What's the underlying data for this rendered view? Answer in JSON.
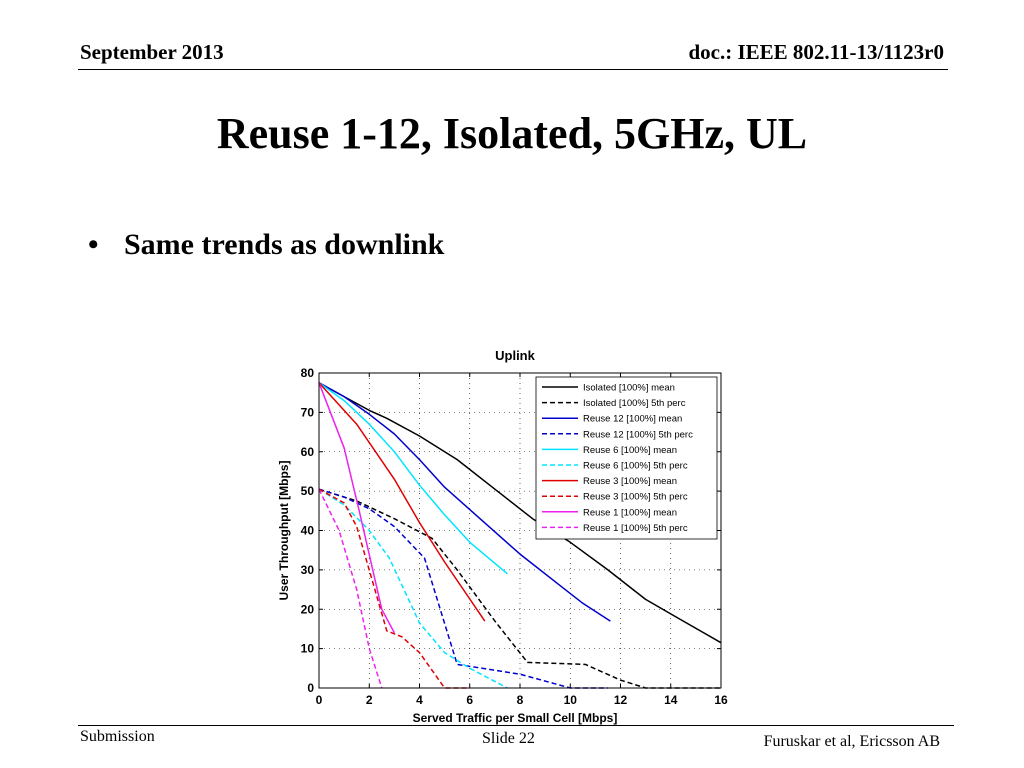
{
  "header": {
    "date": "September 2013",
    "doc_id": "doc.: IEEE 802.11-13/1123r0"
  },
  "slide": {
    "title": "Reuse 1-12, Isolated, 5GHz, UL",
    "bullets": [
      "Same trends as downlink"
    ]
  },
  "footer": {
    "left": "Submission",
    "center": "Slide 22",
    "right": "Furuskar et al, Ericsson AB"
  },
  "chart_data": {
    "type": "line",
    "title": "Uplink",
    "xlabel": "Served Traffic per Small Cell [Mbps]",
    "ylabel": "User Throughput [Mbps]",
    "xlim": [
      0,
      16
    ],
    "ylim": [
      0,
      80
    ],
    "xticks": [
      0,
      2,
      4,
      6,
      8,
      10,
      12,
      14,
      16
    ],
    "yticks": [
      0,
      10,
      20,
      30,
      40,
      50,
      60,
      70,
      80
    ],
    "grid": true,
    "legend_position": "top-right",
    "series": [
      {
        "name": "Isolated [100%] mean",
        "color": "#000000",
        "dash": "solid",
        "x": [
          0,
          1,
          2,
          2.7,
          4,
          5.5,
          7,
          8.5,
          10,
          11.5,
          13,
          14.5,
          16
        ],
        "y": [
          77.5,
          74,
          70.5,
          68.5,
          64,
          58,
          50.5,
          43,
          37,
          30,
          22.5,
          17,
          11.5
        ]
      },
      {
        "name": "Isolated [100%] 5th perc",
        "color": "#000000",
        "dash": "dashed",
        "x": [
          0,
          1.5,
          3,
          4.5,
          5.5,
          7,
          8.3,
          10.6,
          12,
          13,
          16
        ],
        "y": [
          50.5,
          47.5,
          43,
          38,
          30,
          17,
          6.5,
          6,
          2,
          0,
          0
        ]
      },
      {
        "name": "Reuse 12 [100%] mean",
        "color": "#0000cc",
        "dash": "solid",
        "x": [
          0,
          1,
          2,
          3,
          4,
          5,
          6.5,
          8,
          9.5,
          10.5,
          11.6
        ],
        "y": [
          77.5,
          74,
          69.5,
          64.5,
          58,
          51,
          42.5,
          34,
          26.5,
          21.5,
          17
        ]
      },
      {
        "name": "Reuse 12 [100%] 5th perc",
        "color": "#0000cc",
        "dash": "dashed",
        "x": [
          0,
          1,
          2,
          3,
          4.2,
          5.5,
          8,
          10,
          11.5
        ],
        "y": [
          50.5,
          48.5,
          45.5,
          41,
          33,
          6,
          3.5,
          0,
          0
        ]
      },
      {
        "name": "Reuse 6 [100%] mean",
        "color": "#00e5ff",
        "dash": "solid",
        "x": [
          0,
          1,
          2,
          3,
          4,
          5,
          6,
          7.5
        ],
        "y": [
          77.5,
          73,
          67,
          60,
          51.5,
          44,
          37,
          29
        ]
      },
      {
        "name": "Reuse 6 [100%] 5th perc",
        "color": "#00e5ff",
        "dash": "dashed",
        "x": [
          0,
          1,
          2,
          2.8,
          4,
          5,
          6,
          7.5
        ],
        "y": [
          50.5,
          46.5,
          40,
          33,
          16.5,
          9,
          5,
          0
        ]
      },
      {
        "name": "Reuse 3 [100%] mean",
        "color": "#e00000",
        "dash": "solid",
        "x": [
          0,
          1.5,
          3,
          4,
          5,
          6.6
        ],
        "y": [
          77.5,
          67,
          53,
          42,
          32,
          17
        ]
      },
      {
        "name": "Reuse 3 [100%] 5th perc",
        "color": "#e00000",
        "dash": "dashed",
        "x": [
          0,
          1,
          1.5,
          2.7,
          3.3,
          4,
          5,
          6
        ],
        "y": [
          50.5,
          47,
          41,
          14.5,
          13,
          9,
          0,
          0
        ]
      },
      {
        "name": "Reuse 1 [100%] mean",
        "color": "#ee22ee",
        "dash": "solid",
        "x": [
          0,
          1,
          1.6,
          2.5,
          3
        ],
        "y": [
          77.5,
          61,
          45,
          20,
          14
        ]
      },
      {
        "name": "Reuse 1 [100%] 5th perc",
        "color": "#ee22ee",
        "dash": "dashed",
        "x": [
          0,
          0.8,
          1.5,
          2,
          2.5
        ],
        "y": [
          50.5,
          40,
          25,
          10,
          0
        ]
      }
    ]
  }
}
